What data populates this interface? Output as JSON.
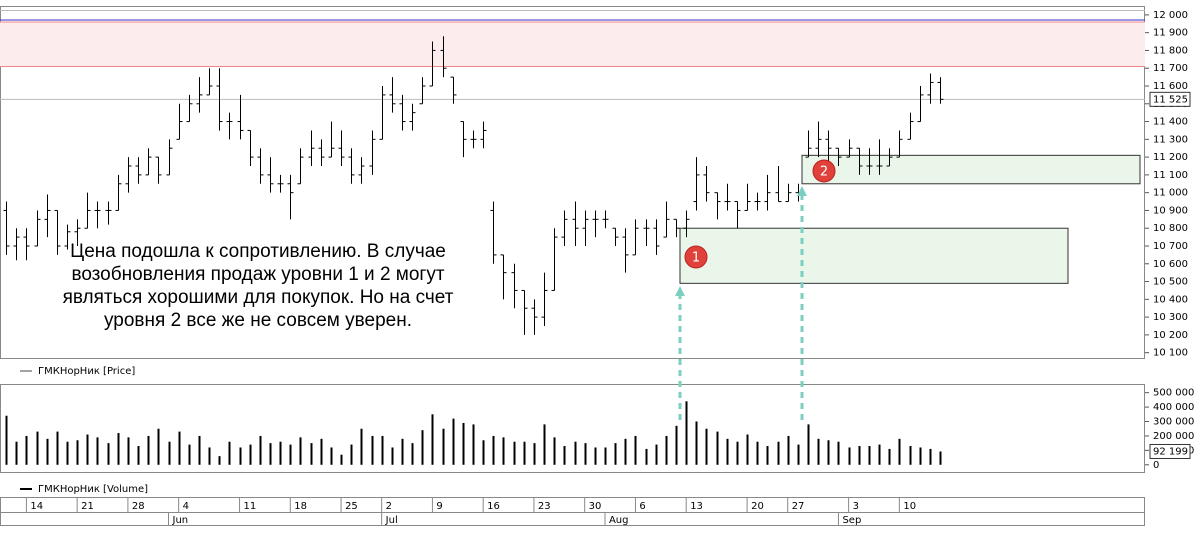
{
  "chart_data": {
    "type": "ohlc",
    "annotation": [
      "Цена подошла к сопротивлению. В случае",
      "возобновления продаж уровни 1 и 2 могут",
      "являться хорошими для покупок. Но на счет",
      "уровня 2 все же не совсем уверен."
    ],
    "price": {
      "name": "ГМКНорНик [Price]",
      "color": "#000000",
      "open": [
        10900,
        10700,
        10750,
        10700,
        10850,
        10900,
        10700,
        10780,
        10800,
        10900,
        10900,
        10900,
        11050,
        11150,
        11100,
        11200,
        11100,
        11300,
        11400,
        11500,
        11550,
        11600,
        11400,
        11400,
        11350,
        11200,
        11100,
        11050,
        11050,
        11050,
        11200,
        11250,
        11200,
        11250,
        11200,
        11100,
        11150,
        11300,
        11550,
        11500,
        11400,
        11500,
        11600,
        11800,
        11650,
        11400,
        11300,
        11300,
        10900,
        10650,
        10550,
        10450,
        10350,
        10300,
        10450,
        10750,
        10850,
        10800,
        10850,
        10850,
        10800,
        10750,
        10650,
        10800,
        10800,
        10750,
        10850,
        10800,
        10950,
        11100,
        11000,
        10950,
        10950,
        10900,
        10950,
        10950,
        11000,
        10950,
        11000,
        11200,
        11250,
        11300,
        11250,
        11200,
        11250,
        11150,
        11150,
        11150,
        11200,
        11300,
        11400,
        11550,
        11620
      ],
      "high": [
        10950,
        10800,
        10800,
        10900,
        10990,
        10900,
        10820,
        10850,
        11000,
        10950,
        10950,
        11100,
        11200,
        11200,
        11250,
        11200,
        11300,
        11500,
        11550,
        11650,
        11700,
        11700,
        11450,
        11550,
        11350,
        11250,
        11200,
        11100,
        11100,
        11250,
        11350,
        11300,
        11400,
        11350,
        11250,
        11200,
        11350,
        11600,
        11650,
        11550,
        11500,
        11650,
        11850,
        11880,
        11650,
        11400,
        11350,
        11400,
        10950,
        10650,
        10600,
        10450,
        10400,
        10550,
        10800,
        10900,
        10950,
        10900,
        10900,
        10900,
        10800,
        10800,
        10850,
        10850,
        10850,
        10950,
        10850,
        10900,
        11200,
        11150,
        11000,
        11050,
        10950,
        11050,
        11000,
        11100,
        11150,
        11050,
        11050,
        11350,
        11400,
        11350,
        11250,
        11300,
        11250,
        11250,
        11300,
        11250,
        11350,
        11450,
        11600,
        11670,
        11650
      ],
      "low": [
        10650,
        10620,
        10620,
        10700,
        10750,
        10650,
        10680,
        10700,
        10800,
        10800,
        10820,
        10900,
        11000,
        11050,
        11100,
        11050,
        11100,
        11300,
        11400,
        11450,
        11550,
        11350,
        11300,
        11300,
        11150,
        11050,
        11000,
        11000,
        10850,
        11050,
        11150,
        11150,
        11200,
        11150,
        11050,
        11050,
        11100,
        11300,
        11450,
        11350,
        11350,
        11500,
        11600,
        11650,
        11500,
        11200,
        11250,
        11250,
        10600,
        10400,
        10350,
        10200,
        10200,
        10250,
        10450,
        10700,
        10700,
        10700,
        10750,
        10800,
        10700,
        10550,
        10650,
        10700,
        10650,
        10750,
        10750,
        10750,
        10900,
        10950,
        10850,
        10900,
        10800,
        10900,
        10900,
        10900,
        10950,
        10950,
        10950,
        11200,
        11200,
        11150,
        11150,
        11200,
        11100,
        11100,
        11100,
        11150,
        11200,
        11300,
        11400,
        11500,
        11500
      ],
      "close": [
        10700,
        10750,
        10700,
        10850,
        10900,
        10700,
        10780,
        10800,
        10900,
        10900,
        10900,
        11050,
        11150,
        11100,
        11200,
        11100,
        11250,
        11400,
        11500,
        11550,
        11600,
        11400,
        11400,
        11350,
        11200,
        11100,
        11050,
        11050,
        11000,
        11200,
        11250,
        11200,
        11250,
        11200,
        11100,
        11150,
        11300,
        11550,
        11500,
        11400,
        11450,
        11600,
        11800,
        11700,
        11550,
        11300,
        11300,
        11350,
        10650,
        10550,
        10450,
        10350,
        10300,
        10450,
        10750,
        10850,
        10800,
        10850,
        10850,
        10850,
        10750,
        10650,
        10800,
        10800,
        10700,
        10850,
        10800,
        10850,
        11100,
        11000,
        10950,
        10950,
        10900,
        10950,
        10950,
        11000,
        10950,
        11000,
        11000,
        11250,
        11300,
        11250,
        11200,
        11250,
        11150,
        11150,
        11150,
        11200,
        11300,
        11400,
        11550,
        11620,
        11525
      ],
      "last": {
        "value": 11525,
        "label": "11 525"
      },
      "resistance": [
        11710,
        11960
      ],
      "zones": [
        {
          "label": "1",
          "top": 10800,
          "bottom": 10490
        },
        {
          "label": "2",
          "top": 11210,
          "bottom": 11050
        }
      ],
      "ylim": [
        10070,
        12050
      ],
      "yticks": [
        {
          "value": 10100,
          "label": "10 100"
        },
        {
          "value": 10200,
          "label": "10 200"
        },
        {
          "value": 10300,
          "label": "10 300"
        },
        {
          "value": 10400,
          "label": "10 400"
        },
        {
          "value": 10500,
          "label": "10 500"
        },
        {
          "value": 10600,
          "label": "10 600"
        },
        {
          "value": 10700,
          "label": "10 700"
        },
        {
          "value": 10800,
          "label": "10 800"
        },
        {
          "value": 10900,
          "label": "10 900"
        },
        {
          "value": 11000,
          "label": "11 000"
        },
        {
          "value": 11100,
          "label": "11 100"
        },
        {
          "value": 11200,
          "label": "11 200"
        },
        {
          "value": 11300,
          "label": "11 300"
        },
        {
          "value": 11400,
          "label": "11 400"
        },
        {
          "value": 11500,
          "label": "11 500"
        },
        {
          "value": 11600,
          "label": "11 600"
        },
        {
          "value": 11700,
          "label": "11 700"
        },
        {
          "value": 11800,
          "label": "11 800"
        },
        {
          "value": 11900,
          "label": "11 900"
        },
        {
          "value": 12000,
          "label": "12 000"
        }
      ]
    },
    "volume": {
      "name": "ГМКНорНик [Volume]",
      "color": "#000000",
      "values": [
        340000,
        160000,
        200000,
        230000,
        180000,
        230000,
        160000,
        170000,
        210000,
        190000,
        150000,
        220000,
        190000,
        130000,
        200000,
        250000,
        160000,
        230000,
        140000,
        200000,
        120000,
        60000,
        160000,
        120000,
        140000,
        200000,
        150000,
        160000,
        140000,
        190000,
        150000,
        180000,
        120000,
        70000,
        140000,
        250000,
        200000,
        200000,
        120000,
        180000,
        150000,
        240000,
        350000,
        250000,
        320000,
        290000,
        280000,
        170000,
        200000,
        190000,
        160000,
        160000,
        150000,
        280000,
        190000,
        130000,
        160000,
        150000,
        120000,
        120000,
        150000,
        180000,
        200000,
        110000,
        140000,
        200000,
        270000,
        440000,
        300000,
        250000,
        230000,
        180000,
        160000,
        210000,
        160000,
        130000,
        160000,
        200000,
        140000,
        280000,
        180000,
        170000,
        160000,
        120000,
        130000,
        130000,
        140000,
        110000,
        180000,
        130000,
        120000,
        110000,
        92199
      ],
      "last": {
        "value": 92199,
        "label": "92 199"
      },
      "ylim": [
        -50000,
        560000
      ],
      "yticks": [
        0,
        {
          "value": 100000,
          "label": "100 000"
        },
        {
          "value": 200000,
          "label": "200 000"
        },
        {
          "value": 300000,
          "label": "300 000"
        },
        {
          "value": 400000,
          "label": "400 000"
        },
        {
          "value": 500000,
          "label": "500 000"
        }
      ]
    },
    "xlim": [
      -0.6,
      112.2
    ],
    "xticks": [
      {
        "value": 2,
        "label": "14"
      },
      {
        "value": 7,
        "label": "21"
      },
      {
        "value": 12,
        "label": "28"
      },
      {
        "value": 17,
        "label": "4"
      },
      {
        "value": 23,
        "label": "11"
      },
      {
        "value": 28,
        "label": "18"
      },
      {
        "value": 33,
        "label": "25"
      },
      {
        "value": 37,
        "label": "2"
      },
      {
        "value": 42,
        "label": "9"
      },
      {
        "value": 47,
        "label": "16"
      },
      {
        "value": 52,
        "label": "23"
      },
      {
        "value": 57,
        "label": "30"
      },
      {
        "value": 62,
        "label": "6"
      },
      {
        "value": 67,
        "label": "13"
      },
      {
        "value": 73,
        "label": "20"
      },
      {
        "value": 77,
        "label": "27"
      },
      {
        "value": 83,
        "label": "3"
      },
      {
        "value": 88,
        "label": "10"
      }
    ],
    "months": [
      {
        "value": 16,
        "label": "Jun"
      },
      {
        "value": 37,
        "label": "Jul"
      },
      {
        "value": 59,
        "label": "Aug"
      },
      {
        "value": 82,
        "label": "Sep"
      }
    ]
  }
}
